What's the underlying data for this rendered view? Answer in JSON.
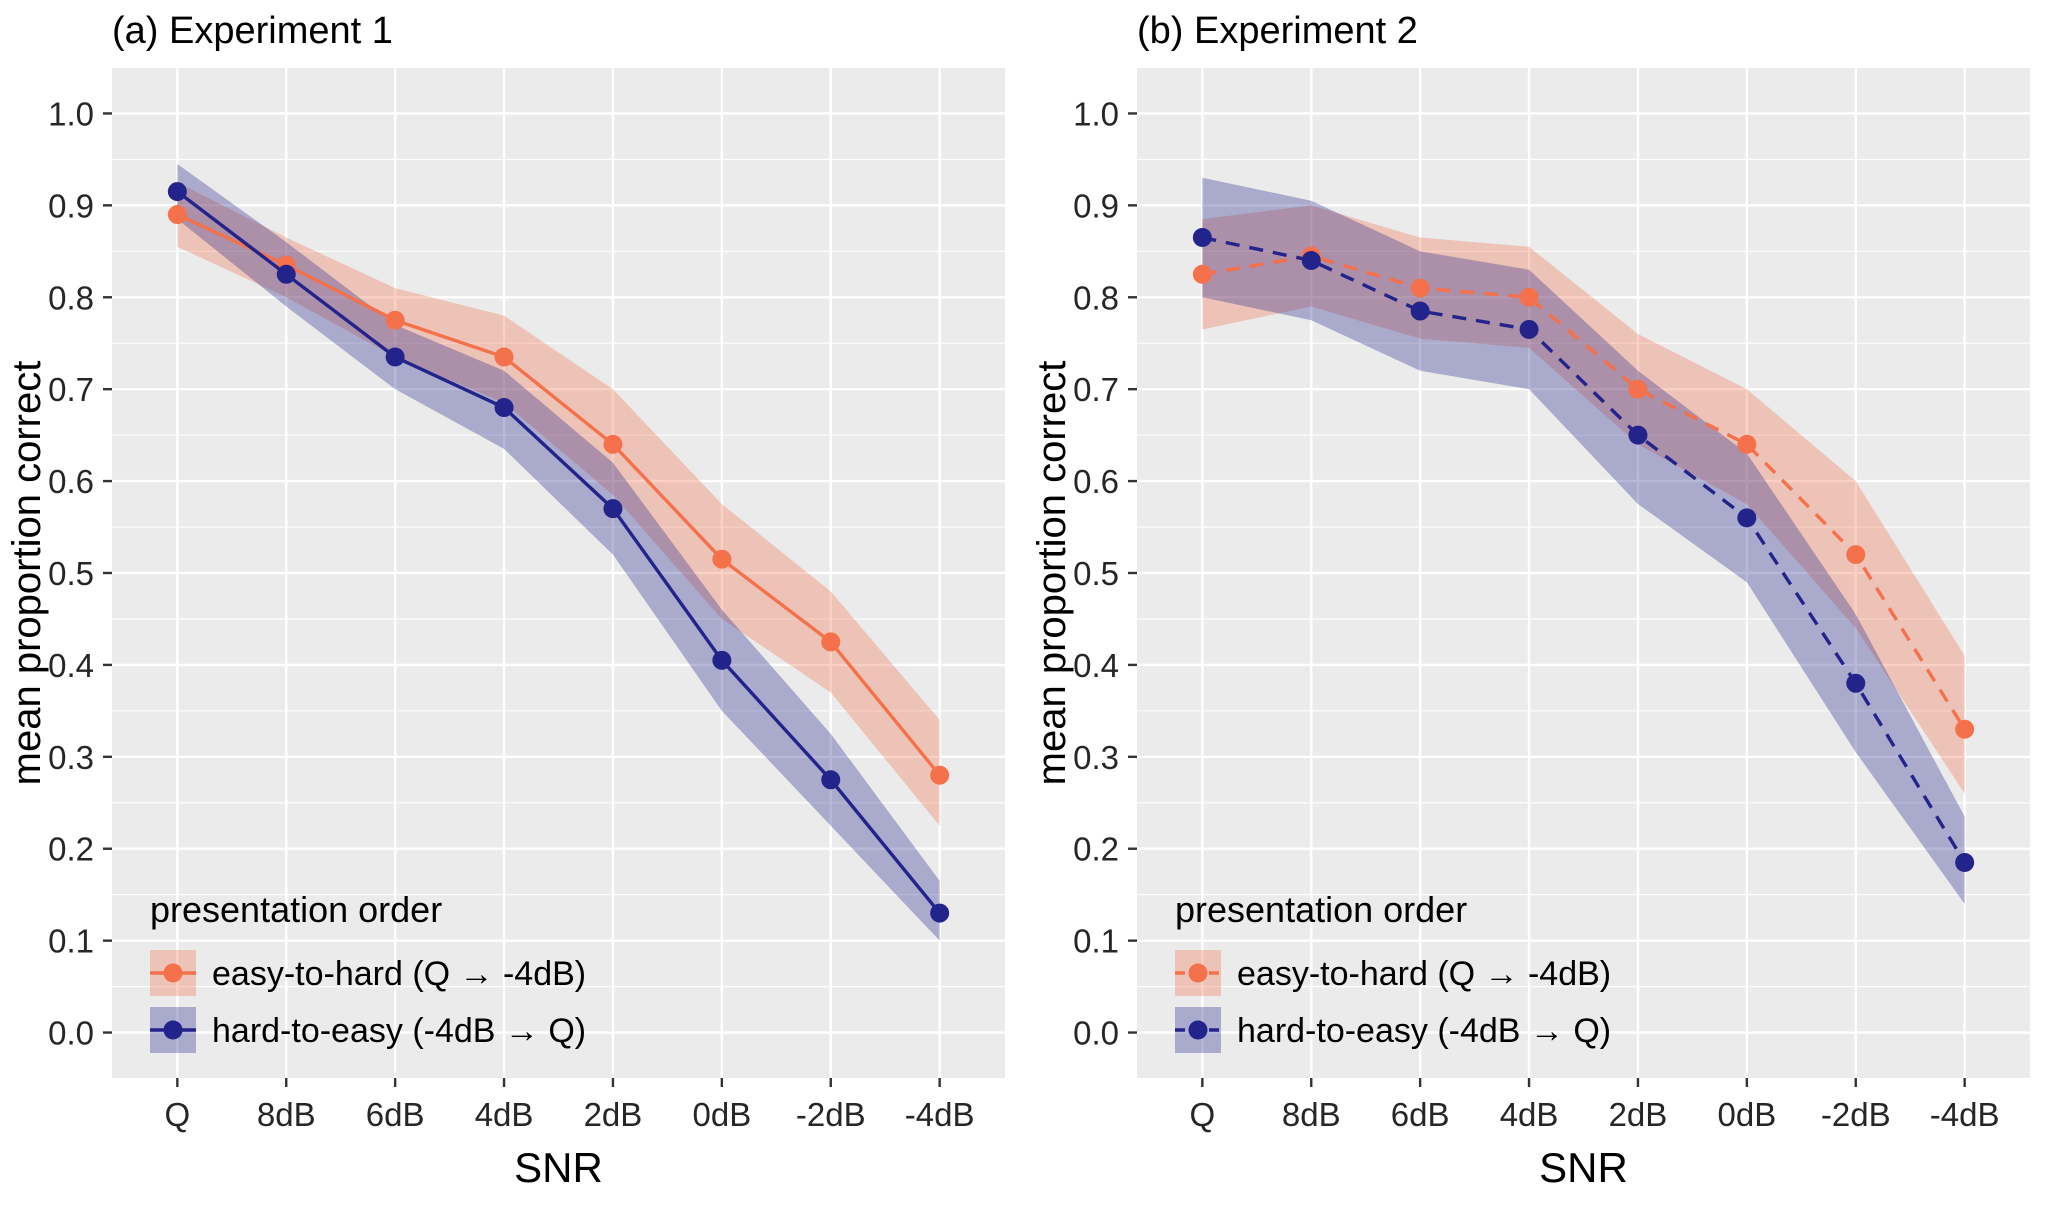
{
  "figure": {
    "background": "#FFFFFF"
  },
  "chart_data": [
    {
      "type": "line",
      "title": "(a) Experiment 1",
      "xlabel": "SNR",
      "ylabel": "mean proportion correct",
      "categories": [
        "Q",
        "8dB",
        "6dB",
        "4dB",
        "2dB",
        "0dB",
        "-2dB",
        "-4dB"
      ],
      "ylim": [
        0.0,
        1.0
      ],
      "yticks": [
        0.0,
        0.1,
        0.2,
        0.3,
        0.4,
        0.5,
        0.6,
        0.7,
        0.8,
        0.9,
        1.0
      ],
      "ytick_labels": [
        "0.0",
        "0.1",
        "0.2",
        "0.3",
        "0.4",
        "0.5",
        "0.6",
        "0.7",
        "0.8",
        "0.9",
        "1.0"
      ],
      "grid": true,
      "panel_background": "#EBEBEB",
      "gridline_color": "#FFFFFF",
      "line_style": "solid",
      "legend": {
        "title": "presentation order",
        "position": "bottom-left"
      },
      "series": [
        {
          "id": "easy-to-hard",
          "name": "easy-to-hard (Q → -4dB)",
          "color": "#F4714C",
          "values": [
            0.89,
            0.835,
            0.775,
            0.735,
            0.64,
            0.515,
            0.425,
            0.28
          ],
          "lower": [
            0.855,
            0.8,
            0.735,
            0.685,
            0.585,
            0.45,
            0.37,
            0.225
          ],
          "upper": [
            0.925,
            0.865,
            0.81,
            0.78,
            0.7,
            0.575,
            0.48,
            0.34
          ]
        },
        {
          "id": "hard-to-easy",
          "name": "hard-to-easy (-4dB → Q)",
          "color": "#23238C",
          "values": [
            0.915,
            0.825,
            0.735,
            0.68,
            0.57,
            0.405,
            0.275,
            0.13
          ],
          "lower": [
            0.885,
            0.79,
            0.7,
            0.635,
            0.52,
            0.35,
            0.225,
            0.1
          ],
          "upper": [
            0.945,
            0.86,
            0.77,
            0.72,
            0.62,
            0.46,
            0.325,
            0.165
          ]
        }
      ]
    },
    {
      "type": "line",
      "title": "(b) Experiment 2",
      "xlabel": "SNR",
      "ylabel": "mean proportion correct",
      "categories": [
        "Q",
        "8dB",
        "6dB",
        "4dB",
        "2dB",
        "0dB",
        "-2dB",
        "-4dB"
      ],
      "ylim": [
        0.0,
        1.0
      ],
      "yticks": [
        0.0,
        0.1,
        0.2,
        0.3,
        0.4,
        0.5,
        0.6,
        0.7,
        0.8,
        0.9,
        1.0
      ],
      "ytick_labels": [
        "0.0",
        "0.1",
        "0.2",
        "0.3",
        "0.4",
        "0.5",
        "0.6",
        "0.7",
        "0.8",
        "0.9",
        "1.0"
      ],
      "grid": true,
      "panel_background": "#EBEBEB",
      "gridline_color": "#FFFFFF",
      "line_style": "dashed",
      "legend": {
        "title": "presentation order",
        "position": "bottom-left"
      },
      "series": [
        {
          "id": "easy-to-hard",
          "name": "easy-to-hard (Q → -4dB)",
          "color": "#F4714C",
          "values": [
            0.825,
            0.845,
            0.81,
            0.8,
            0.7,
            0.64,
            0.52,
            0.33
          ],
          "lower": [
            0.765,
            0.79,
            0.755,
            0.745,
            0.64,
            0.575,
            0.44,
            0.26
          ],
          "upper": [
            0.885,
            0.9,
            0.865,
            0.855,
            0.76,
            0.7,
            0.6,
            0.41
          ]
        },
        {
          "id": "hard-to-easy",
          "name": "hard-to-easy (-4dB → Q)",
          "color": "#23238C",
          "values": [
            0.865,
            0.84,
            0.785,
            0.765,
            0.65,
            0.56,
            0.38,
            0.185
          ],
          "lower": [
            0.8,
            0.775,
            0.72,
            0.7,
            0.575,
            0.49,
            0.305,
            0.14
          ],
          "upper": [
            0.93,
            0.905,
            0.85,
            0.83,
            0.72,
            0.63,
            0.455,
            0.235
          ]
        }
      ]
    }
  ]
}
